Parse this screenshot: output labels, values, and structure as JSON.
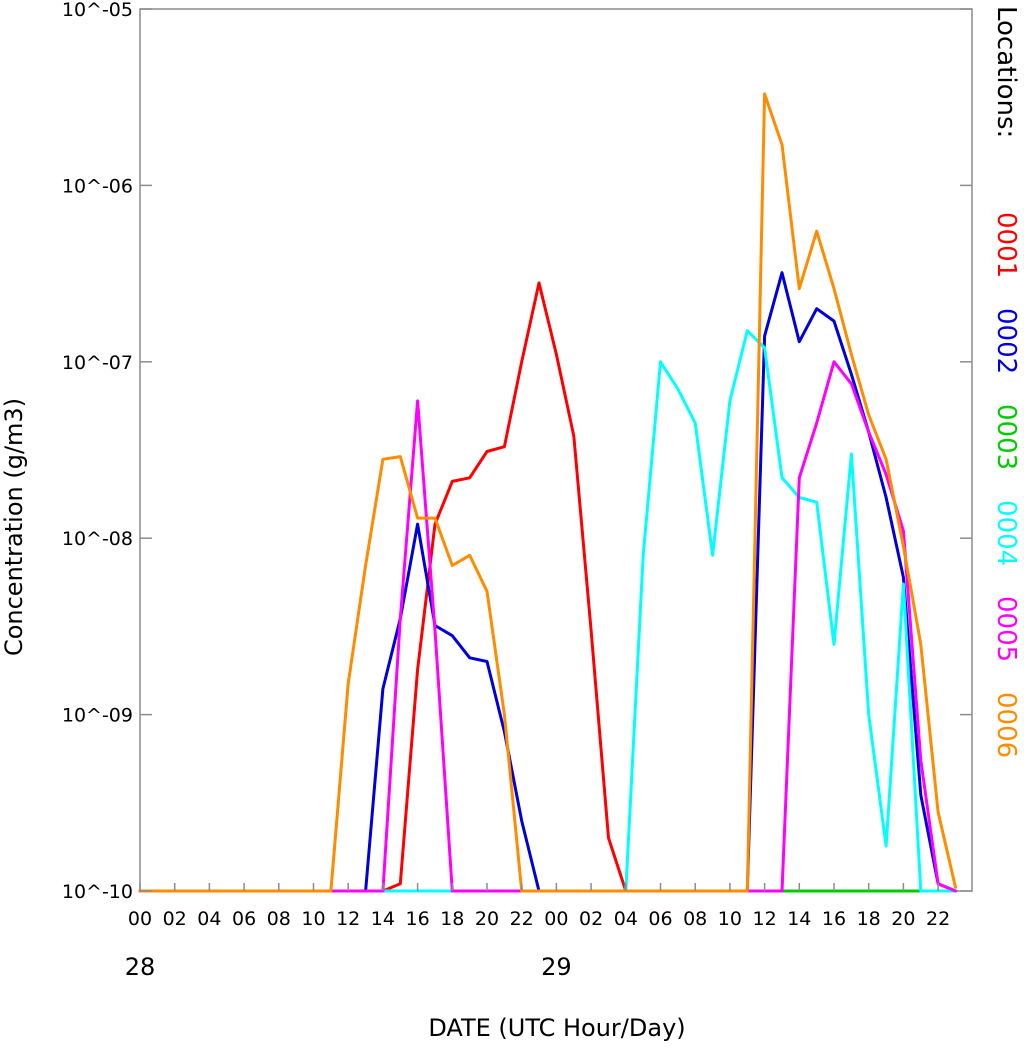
{
  "chart_data": {
    "type": "line",
    "title": "",
    "xlabel": "DATE (UTC Hour/Day)",
    "ylabel": "Concentration (g/m3)",
    "yscale": "log",
    "ylim": [
      1e-10,
      1e-05
    ],
    "y_tick_values": [
      1e-10,
      1e-09,
      1e-08,
      1e-07,
      1e-06,
      1e-05
    ],
    "y_tick_labels": [
      "10^-10",
      "10^-09",
      "10^-08",
      "10^-07",
      "10^-06",
      "10^-05"
    ],
    "x_start": "28 00 UTC",
    "x_step_hours": 1,
    "xlim_hours": [
      0,
      48
    ],
    "x_tick_labels": [
      "00",
      "02",
      "04",
      "06",
      "08",
      "10",
      "12",
      "14",
      "16",
      "18",
      "20",
      "22",
      "00",
      "02",
      "04",
      "06",
      "08",
      "10",
      "12",
      "14",
      "16",
      "18",
      "20",
      "22"
    ],
    "day_labels": [
      {
        "hour": 0,
        "label": "28"
      },
      {
        "hour": 24,
        "label": "29"
      }
    ],
    "legend": {
      "title": "Locations:",
      "placement": "right"
    },
    "series": [
      {
        "name": "0001",
        "color": "#ff0000",
        "values": [
          1e-10,
          1e-10,
          1e-10,
          1e-10,
          1e-10,
          1e-10,
          1e-10,
          1e-10,
          1e-10,
          1e-10,
          1e-10,
          1e-10,
          1e-10,
          1e-10,
          1e-10,
          1.1e-10,
          1.8e-09,
          1.2e-08,
          2.1e-08,
          2.2e-08,
          3.1e-08,
          3.3e-08,
          1e-07,
          2.8e-07,
          1.1e-07,
          3.8e-08,
          3e-09,
          2e-10,
          1e-10,
          1e-10,
          1e-10,
          1e-10,
          1e-10,
          1e-10,
          1e-10,
          1e-10,
          1e-10,
          1e-10,
          1e-10,
          1e-10,
          1e-10,
          1e-10,
          1e-10,
          1e-10,
          1e-10,
          1e-10,
          1e-10,
          1e-10
        ]
      },
      {
        "name": "0002",
        "color": "#0000dd",
        "values": [
          1e-10,
          1e-10,
          1e-10,
          1e-10,
          1e-10,
          1e-10,
          1e-10,
          1e-10,
          1e-10,
          1e-10,
          1e-10,
          1e-10,
          1e-10,
          1e-10,
          1.4e-09,
          3.5e-09,
          1.2e-08,
          3.2e-09,
          2.8e-09,
          2.1e-09,
          2e-09,
          8e-10,
          2.5e-10,
          1e-10,
          1e-10,
          1e-10,
          1e-10,
          1e-10,
          1e-10,
          1e-10,
          1e-10,
          1e-10,
          1e-10,
          1e-10,
          1e-10,
          1e-10,
          1.4e-07,
          3.2e-07,
          1.3e-07,
          2e-07,
          1.7e-07,
          8.5e-08,
          4e-08,
          1.7e-08,
          6e-09,
          3.5e-10,
          1.1e-10,
          1e-10
        ]
      },
      {
        "name": "0003",
        "color": "#00cc00",
        "values": [
          1e-10,
          1e-10,
          1e-10,
          1e-10,
          1e-10,
          1e-10,
          1e-10,
          1e-10,
          1e-10,
          1e-10,
          1e-10,
          1e-10,
          1e-10,
          1e-10,
          1e-10,
          1e-10,
          1e-10,
          1e-10,
          1e-10,
          1e-10,
          1e-10,
          1e-10,
          1e-10,
          1e-10,
          1e-10,
          1e-10,
          1e-10,
          1e-10,
          1e-10,
          1e-10,
          1e-10,
          1e-10,
          1e-10,
          1e-10,
          1e-10,
          1e-10,
          1e-10,
          1e-10,
          1e-10,
          1e-10,
          1e-10,
          1e-10,
          1e-10,
          1e-10,
          1e-10,
          1e-10,
          1e-10,
          1e-10
        ]
      },
      {
        "name": "0004",
        "color": "#00ffff",
        "values": [
          1e-10,
          1e-10,
          1e-10,
          1e-10,
          1e-10,
          1e-10,
          1e-10,
          1e-10,
          1e-10,
          1e-10,
          1e-10,
          1e-10,
          1e-10,
          1e-10,
          1e-10,
          1e-10,
          1e-10,
          1e-10,
          1e-10,
          1e-10,
          1e-10,
          1e-10,
          1e-10,
          1e-10,
          1e-10,
          1e-10,
          1e-10,
          1e-10,
          1e-10,
          8e-09,
          1e-07,
          7e-08,
          4.5e-08,
          8e-09,
          6e-08,
          1.5e-07,
          1.2e-07,
          2.2e-08,
          1.7e-08,
          1.6e-08,
          2.5e-09,
          3e-08,
          1e-09,
          1.8e-10,
          5.5e-09,
          1e-10,
          1e-10,
          1e-10
        ]
      },
      {
        "name": "0005",
        "color": "#ff00ff",
        "values": [
          1e-10,
          1e-10,
          1e-10,
          1e-10,
          1e-10,
          1e-10,
          1e-10,
          1e-10,
          1e-10,
          1e-10,
          1e-10,
          1e-10,
          1e-10,
          1e-10,
          1e-10,
          3.5e-09,
          6e-08,
          3e-09,
          1e-10,
          1e-10,
          1e-10,
          1e-10,
          1e-10,
          1e-10,
          1e-10,
          1e-10,
          1e-10,
          1e-10,
          1e-10,
          1e-10,
          1e-10,
          1e-10,
          1e-10,
          1e-10,
          1e-10,
          1e-10,
          1e-10,
          1e-10,
          2.2e-08,
          4.5e-08,
          1e-07,
          7.5e-08,
          4e-08,
          2.3e-08,
          1.1e-08,
          5.5e-10,
          1.1e-10,
          1e-10
        ]
      },
      {
        "name": "0006",
        "color": "#ff8c00",
        "values": [
          1e-10,
          1e-10,
          1e-10,
          1e-10,
          1e-10,
          1e-10,
          1e-10,
          1e-10,
          1e-10,
          1e-10,
          1e-10,
          1e-10,
          1.5e-09,
          7e-09,
          2.8e-08,
          2.9e-08,
          1.3e-08,
          1.3e-08,
          7e-09,
          8e-09,
          5e-09,
          1e-09,
          1e-10,
          1e-10,
          1e-10,
          1e-10,
          1e-10,
          1e-10,
          1e-10,
          1e-10,
          1e-10,
          1e-10,
          1e-10,
          1e-10,
          1e-10,
          1e-10,
          3.3e-06,
          1.7e-06,
          2.6e-07,
          5.5e-07,
          2.6e-07,
          1.1e-07,
          5e-08,
          2.8e-08,
          9e-09,
          2.5e-09,
          2.8e-10,
          1.05e-10
        ]
      }
    ]
  }
}
